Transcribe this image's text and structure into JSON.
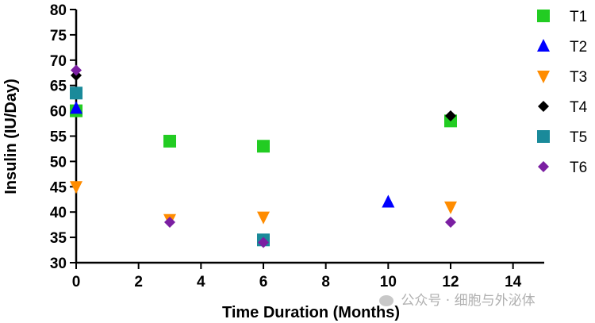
{
  "chart_data": {
    "type": "scatter",
    "title": "",
    "xlabel": "Time Duration (Months)",
    "ylabel": "Insulin (IU/Day)",
    "xlim": [
      0,
      15
    ],
    "ylim": [
      30,
      80
    ],
    "xticks": [
      0,
      2,
      4,
      6,
      8,
      10,
      12,
      14
    ],
    "yticks": [
      30,
      35,
      40,
      45,
      50,
      55,
      60,
      65,
      70,
      75,
      80
    ],
    "grid": false,
    "legend_position": "right",
    "series": [
      {
        "name": "T1",
        "marker": "square",
        "color": "#22cc22",
        "points": [
          {
            "x": 0,
            "y": 60
          },
          {
            "x": 3,
            "y": 54
          },
          {
            "x": 6,
            "y": 53
          },
          {
            "x": 12,
            "y": 58
          }
        ]
      },
      {
        "name": "T2",
        "marker": "triangle-up",
        "color": "#0000ff",
        "points": [
          {
            "x": 0,
            "y": 60.5
          },
          {
            "x": 10,
            "y": 42
          }
        ]
      },
      {
        "name": "T3",
        "marker": "triangle-down",
        "color": "#ff8c00",
        "points": [
          {
            "x": 0,
            "y": 45
          },
          {
            "x": 3,
            "y": 38.5
          },
          {
            "x": 6,
            "y": 39
          },
          {
            "x": 12,
            "y": 41
          }
        ]
      },
      {
        "name": "T4",
        "marker": "diamond",
        "color": "#000000",
        "points": [
          {
            "x": 0,
            "y": 67
          },
          {
            "x": 12,
            "y": 59
          }
        ]
      },
      {
        "name": "T5",
        "marker": "square",
        "color": "#1a8a9a",
        "points": [
          {
            "x": 0,
            "y": 63.5
          },
          {
            "x": 6,
            "y": 34.5
          }
        ]
      },
      {
        "name": "T6",
        "marker": "diamond",
        "color": "#7b1fa2",
        "points": [
          {
            "x": 0,
            "y": 68
          },
          {
            "x": 3,
            "y": 38
          },
          {
            "x": 6,
            "y": 34
          },
          {
            "x": 12,
            "y": 38
          }
        ]
      }
    ]
  },
  "watermark": {
    "text": "公众号 · 细胞与外泌体"
  }
}
